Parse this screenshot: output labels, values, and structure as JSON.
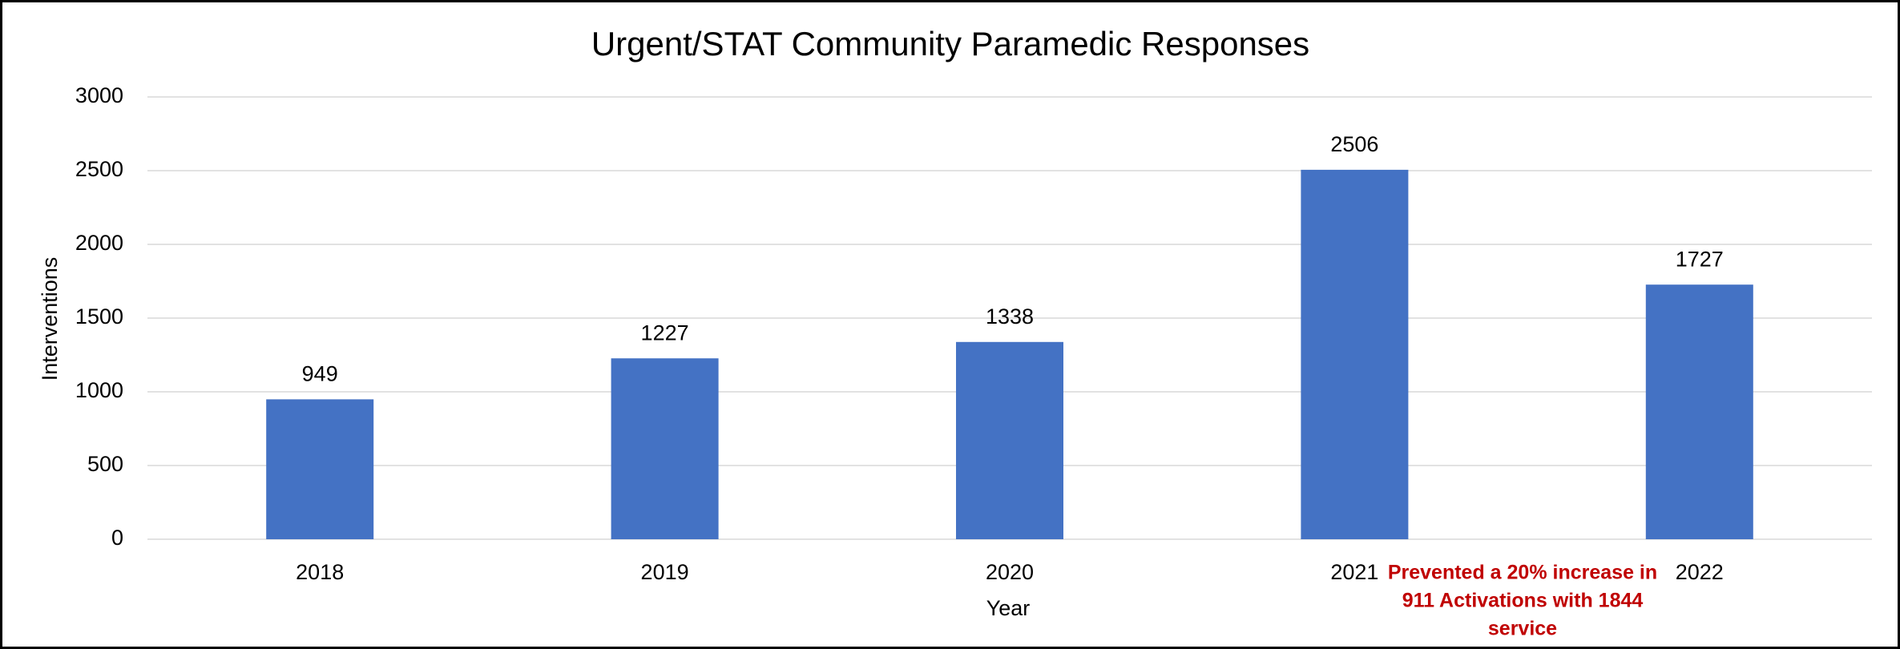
{
  "chart_data": {
    "type": "bar",
    "title": "Urgent/STAT Community Paramedic Responses",
    "x_label": "Year",
    "y_label": "Interventions",
    "categories": [
      "2018",
      "2019",
      "2020",
      "2021",
      "2022"
    ],
    "values": [
      949,
      1227,
      1338,
      2506,
      1727
    ],
    "color": "#4472c4",
    "ylim": [
      0,
      3000
    ],
    "yticks": [
      0,
      500,
      1000,
      1500,
      2000,
      2500,
      3000
    ],
    "grid": true,
    "annotation": [
      "Prevented a 20% increase in",
      "911 Activations with 1844",
      "service"
    ],
    "annotation_color": "#c00000"
  }
}
